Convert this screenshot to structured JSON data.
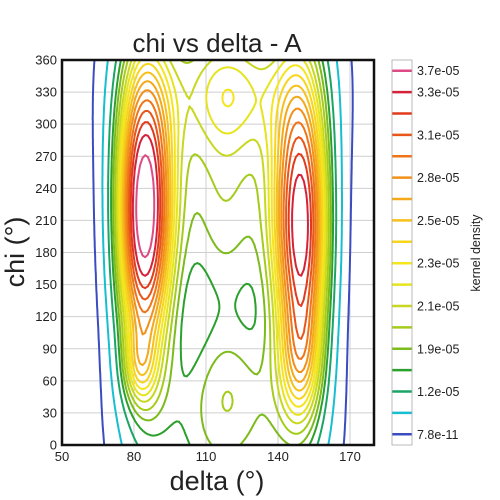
{
  "chart_data": {
    "type": "contour",
    "title": "chi vs delta - A",
    "xlabel": "delta (°)",
    "ylabel": "chi (°)",
    "xlim": [
      50,
      180
    ],
    "ylim": [
      0,
      360
    ],
    "xticks": [
      50,
      80,
      110,
      140,
      170
    ],
    "yticks": [
      0,
      30,
      60,
      90,
      120,
      150,
      180,
      210,
      240,
      270,
      300,
      330,
      360
    ],
    "grid": true,
    "colorbar": {
      "label": "kernel density",
      "tick_labels": [
        "7.8e-11",
        "1.2e-05",
        "1.9e-05",
        "2.1e-05",
        "2.3e-05",
        "2.5e-05",
        "2.8e-05",
        "3.1e-05",
        "3.3e-05",
        "3.7e-05"
      ],
      "level_colors": [
        "#3b4cc0",
        "#17becf",
        "#1aa567",
        "#2ca02c",
        "#7dbb1c",
        "#a5cc1b",
        "#c7d81f",
        "#e6e41e",
        "#f5e51f",
        "#f7d51c",
        "#f6c11b",
        "#f5a81a",
        "#f39019",
        "#ef7518",
        "#e9561a",
        "#e13a1c",
        "#d62238",
        "#dd4a84"
      ]
    },
    "series": [
      {
        "name": "",
        "type": "ridge-peak",
        "delta": 83,
        "chi": 220,
        "level": "3.7e-05"
      },
      {
        "name": "",
        "type": "ridge-peak",
        "delta": 150,
        "chi": 210,
        "level": "3.3e-05"
      },
      {
        "name": "",
        "type": "ridge-peak",
        "delta": 83,
        "chi": 70,
        "level": "3.3e-05"
      },
      {
        "name": "",
        "type": "ridge-peak",
        "delta": 150,
        "chi": 75,
        "level": "3.1e-05"
      },
      {
        "name": "",
        "type": "local-max",
        "delta": 120,
        "chi": 205,
        "level": "2.1e-05"
      }
    ]
  }
}
